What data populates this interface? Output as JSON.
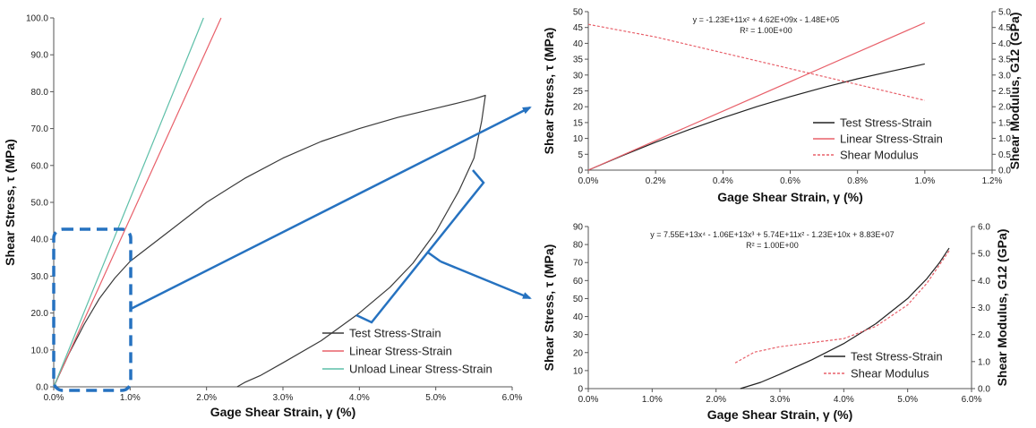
{
  "chart_data": [
    {
      "type": "line",
      "xlabel": "Gage Shear Strain, γ (%)",
      "ylabel": "Shear Stress, τ (MPa)",
      "xlim": [
        0,
        6
      ],
      "ylim": [
        0,
        100
      ],
      "x_ticks": [
        "0.0%",
        "1.0%",
        "2.0%",
        "3.0%",
        "4.0%",
        "5.0%",
        "6.0%"
      ],
      "y_ticks": [
        "0.0",
        "10.0",
        "20.0",
        "30.0",
        "40.0",
        "50.0",
        "60.0",
        "70.0",
        "80.0",
        "90.0",
        "100.0"
      ],
      "grid": false,
      "legend_position": "bottom-right",
      "series": [
        {
          "name": "Test Stress-Strain",
          "color": "#3a3a3a",
          "x": [
            0,
            0.2,
            0.4,
            0.6,
            0.8,
            1.0,
            1.5,
            2.0,
            2.5,
            3.0,
            3.5,
            4.0,
            4.5,
            5.0,
            5.3,
            5.5,
            5.65,
            5.6,
            5.5,
            5.3,
            5.0,
            4.7,
            4.4,
            4.0,
            3.5,
            3.0,
            2.7,
            2.5,
            2.4
          ],
          "y": [
            0,
            9,
            17,
            24,
            29.5,
            34,
            42,
            50,
            56.5,
            62,
            66.5,
            70,
            73,
            75.5,
            77,
            78,
            79,
            72,
            62,
            53,
            42,
            33.5,
            27,
            20,
            12.5,
            6.5,
            3,
            1.2,
            0
          ]
        },
        {
          "name": "Linear Stress-Strain",
          "color": "#e8606a",
          "x": [
            0,
            2.19
          ],
          "y": [
            0,
            100
          ]
        },
        {
          "name": "Unload Linear Stress-Strain",
          "color": "#5dbfa8",
          "x": [
            0,
            1.96
          ],
          "y": [
            0,
            100
          ]
        }
      ]
    },
    {
      "type": "line",
      "xlabel": "Gage Shear Strain, γ (%)",
      "ylabel": "Shear Stress, τ (MPa)",
      "y2label": "Shear Modulus, G12 (GPa)",
      "xlim": [
        0,
        1.2
      ],
      "ylim": [
        0,
        50
      ],
      "y2lim": [
        0,
        5
      ],
      "x_ticks": [
        "0.0%",
        "0.2%",
        "0.4%",
        "0.6%",
        "0.8%",
        "1.0%",
        "1.2%"
      ],
      "y_ticks": [
        "0",
        "5",
        "10",
        "15",
        "20",
        "25",
        "30",
        "35",
        "40",
        "45",
        "50"
      ],
      "y2_ticks": [
        "0.0",
        "0.5",
        "1.0",
        "1.5",
        "2.0",
        "2.5",
        "3.0",
        "3.5",
        "4.0",
        "4.5",
        "5.0"
      ],
      "equation": "y = -1.23E+11x² + 4.62E+09x - 1.48E+05",
      "r2": "R² = 1.00E+00",
      "legend_position": "bottom-right",
      "series": [
        {
          "name": "Test Stress-Strain",
          "color": "#222222",
          "axis": "left",
          "x": [
            0,
            0.1,
            0.2,
            0.3,
            0.4,
            0.5,
            0.6,
            0.7,
            0.8,
            0.9,
            1.0
          ],
          "y": [
            0,
            4.5,
            8.8,
            12.8,
            16.5,
            20,
            23.2,
            26.1,
            28.8,
            31.2,
            33.5
          ]
        },
        {
          "name": "Linear Stress-Strain",
          "color": "#e8606a",
          "axis": "left",
          "x": [
            0,
            1.0
          ],
          "y": [
            0,
            46.5
          ]
        },
        {
          "name": "Shear Modulus",
          "color": "#e8606a",
          "dashed": true,
          "axis": "right",
          "x": [
            0,
            0.2,
            0.4,
            0.6,
            0.8,
            1.0
          ],
          "y": [
            4.6,
            4.2,
            3.7,
            3.2,
            2.7,
            2.2
          ]
        }
      ]
    },
    {
      "type": "line",
      "xlabel": "Gage Shear Strain, γ (%)",
      "ylabel": "Shear Stress, τ (MPa)",
      "y2label": "Shear Modulus, G12 (GPa)",
      "xlim": [
        0,
        6
      ],
      "ylim": [
        0,
        90
      ],
      "y2lim": [
        0,
        6
      ],
      "x_ticks": [
        "0.0%",
        "1.0%",
        "2.0%",
        "3.0%",
        "4.0%",
        "5.0%",
        "6.0%"
      ],
      "y_ticks": [
        "0",
        "10",
        "20",
        "30",
        "40",
        "50",
        "60",
        "70",
        "80",
        "90"
      ],
      "y2_ticks": [
        "0.0",
        "1.0",
        "2.0",
        "3.0",
        "4.0",
        "5.0",
        "6.0"
      ],
      "equation": "y = 7.55E+13x⁴ - 1.06E+13x³ + 5.74E+11x² - 1.23E+10x + 8.83E+07",
      "r2": "R² = 1.00E+00",
      "legend_position": "bottom-right",
      "series": [
        {
          "name": "Test Stress-Strain",
          "color": "#222222",
          "axis": "left",
          "x": [
            2.38,
            2.7,
            3.0,
            3.5,
            4.0,
            4.5,
            5.0,
            5.3,
            5.5,
            5.65
          ],
          "y": [
            0,
            3.5,
            8,
            16,
            25,
            36,
            50,
            61,
            70,
            78
          ]
        },
        {
          "name": "Shear Modulus",
          "color": "#e8606a",
          "dashed": true,
          "axis": "right",
          "x": [
            2.3,
            2.6,
            3.0,
            3.5,
            4.0,
            4.5,
            5.0,
            5.3,
            5.65
          ],
          "y": [
            0.95,
            1.35,
            1.55,
            1.7,
            1.85,
            2.3,
            3.1,
            3.9,
            5.1
          ]
        }
      ]
    }
  ]
}
